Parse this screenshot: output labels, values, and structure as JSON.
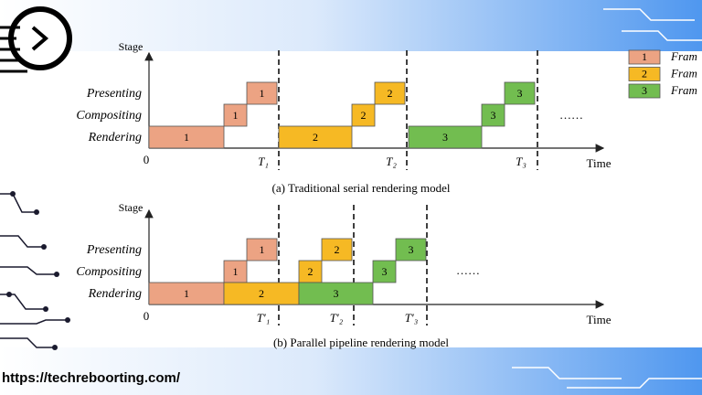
{
  "diagram": {
    "panels": [
      {
        "y_axis_label": "Stage",
        "rows": [
          "Presenting",
          "Compositing",
          "Rendering"
        ],
        "origin": "0",
        "x_axis_label": "Time",
        "markers": [
          "T₁",
          "T₂",
          "T₃"
        ],
        "ellipsis": "……",
        "caption": "(a) Traditional serial rendering model"
      },
      {
        "y_axis_label": "Stage",
        "rows": [
          "Presenting",
          "Compositing",
          "Rendering"
        ],
        "origin": "0",
        "x_axis_label": "Time",
        "markers": [
          "T′₁",
          "T′₂",
          "T′₃"
        ],
        "ellipsis": "……",
        "caption": "(b) Parallel pipeline rendering model"
      }
    ],
    "frames": [
      {
        "label": "1",
        "legend": "Fram"
      },
      {
        "label": "2",
        "legend": "Fram"
      },
      {
        "label": "3",
        "legend": "Fram"
      }
    ]
  },
  "url": "https://techreboorting.com/"
}
